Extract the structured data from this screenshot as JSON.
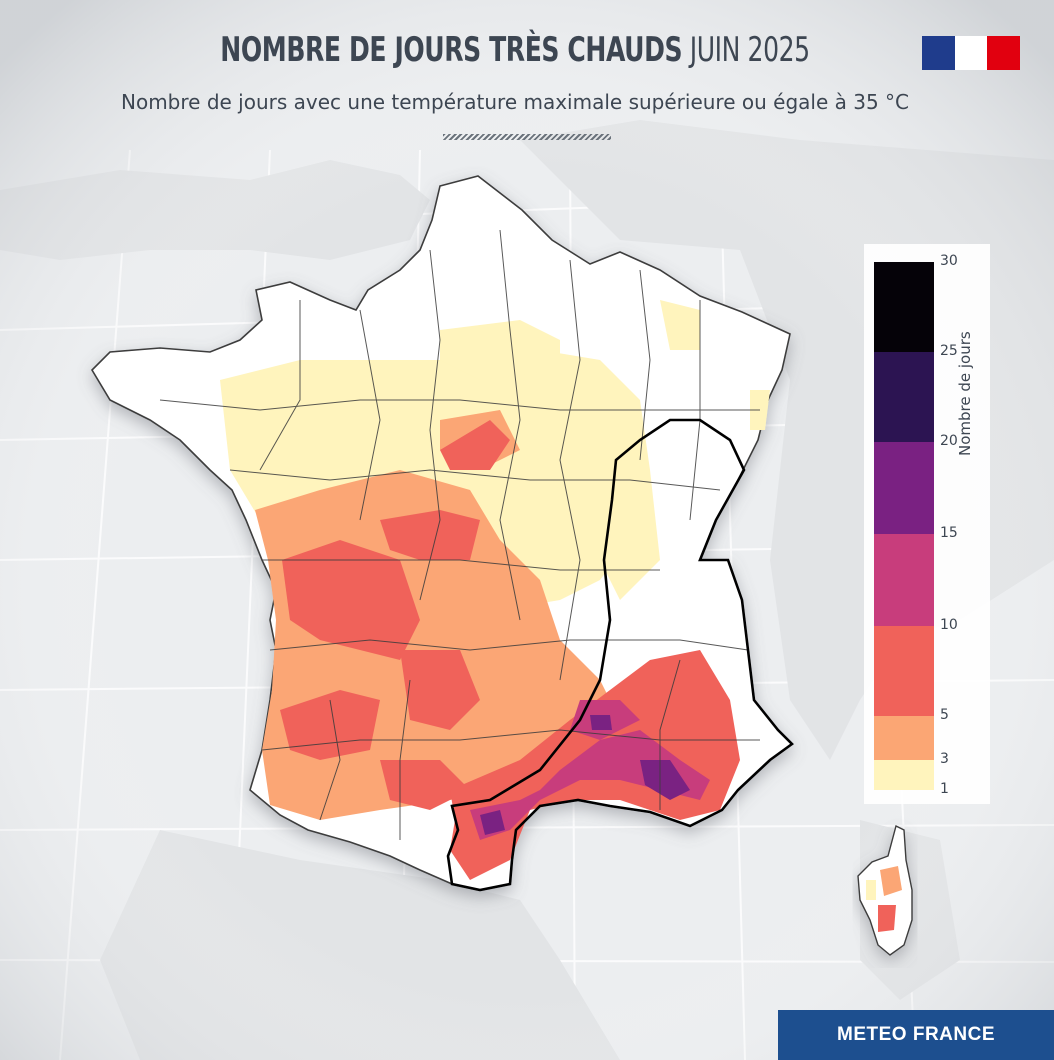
{
  "header": {
    "title_bold": "NOMBRE DE JOURS TRÈS CHAUDS",
    "title_light": "JUIN 2025",
    "subtitle": "Nombre de jours avec une température maximale supérieure ou égale à 35 °C"
  },
  "flag": {
    "colors": [
      "#1f3c8c",
      "#ffffff",
      "#e1000f"
    ]
  },
  "legend": {
    "axis_label": "Nombre de jours",
    "bins": [
      {
        "from": 25,
        "to": 30,
        "color": "#050208"
      },
      {
        "from": 20,
        "to": 25,
        "color": "#2c1452"
      },
      {
        "from": 15,
        "to": 20,
        "color": "#7a2182"
      },
      {
        "from": 10,
        "to": 15,
        "color": "#c83d7c"
      },
      {
        "from": 5,
        "to": 10,
        "color": "#f0625a"
      },
      {
        "from": 3,
        "to": 5,
        "color": "#fba674"
      },
      {
        "from": 1,
        "to": 3,
        "color": "#fff4bd"
      }
    ],
    "ticks": [
      "30",
      "25",
      "20",
      "15",
      "10",
      "5",
      "3",
      "1"
    ]
  },
  "map": {
    "region": "France",
    "colors": {
      "land": "#ffffff",
      "bg_land": "#e4e6e8",
      "highlight_outline": "#000000",
      "department_border": "#3c3c3c"
    }
  },
  "brand": {
    "label": "METEO FRANCE"
  }
}
